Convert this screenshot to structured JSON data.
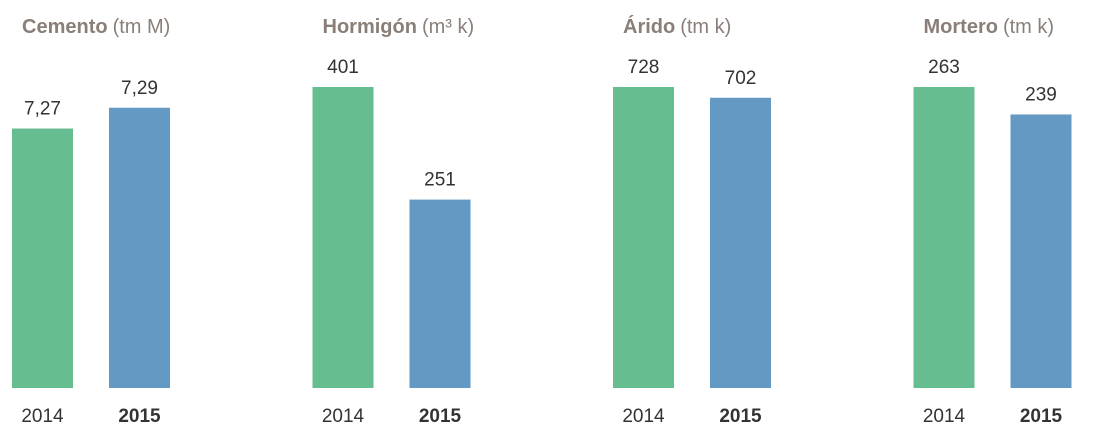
{
  "chart_data": [
    {
      "type": "bar",
      "title": "Cemento",
      "unit": "(tm M)",
      "categories": [
        "2014",
        "2015"
      ],
      "values": [
        7.27,
        7.29
      ],
      "value_labels": [
        "7,27",
        "7,29"
      ],
      "colors": [
        "#66bd8f",
        "#6399c2"
      ],
      "ylim": [
        7.02,
        7.31
      ]
    },
    {
      "type": "bar",
      "title": "Hormigón",
      "unit": "(m³ k)",
      "categories": [
        "2014",
        "2015"
      ],
      "values": [
        401,
        251
      ],
      "colors": [
        "#66bd8f",
        "#6399c2"
      ],
      "ylim": [
        0,
        401
      ]
    },
    {
      "type": "bar",
      "title": "Árido",
      "unit": "(tm k)",
      "categories": [
        "2014",
        "2015"
      ],
      "values": [
        728,
        702
      ],
      "colors": [
        "#66bd8f",
        "#6399c2"
      ],
      "ylim": [
        0,
        728
      ]
    },
    {
      "type": "bar",
      "title": "Mortero",
      "unit": "(tm k)",
      "categories": [
        "2014",
        "2015"
      ],
      "values": [
        263,
        239
      ],
      "colors": [
        "#66bd8f",
        "#6399c2"
      ],
      "ylim": [
        0,
        263
      ]
    }
  ]
}
